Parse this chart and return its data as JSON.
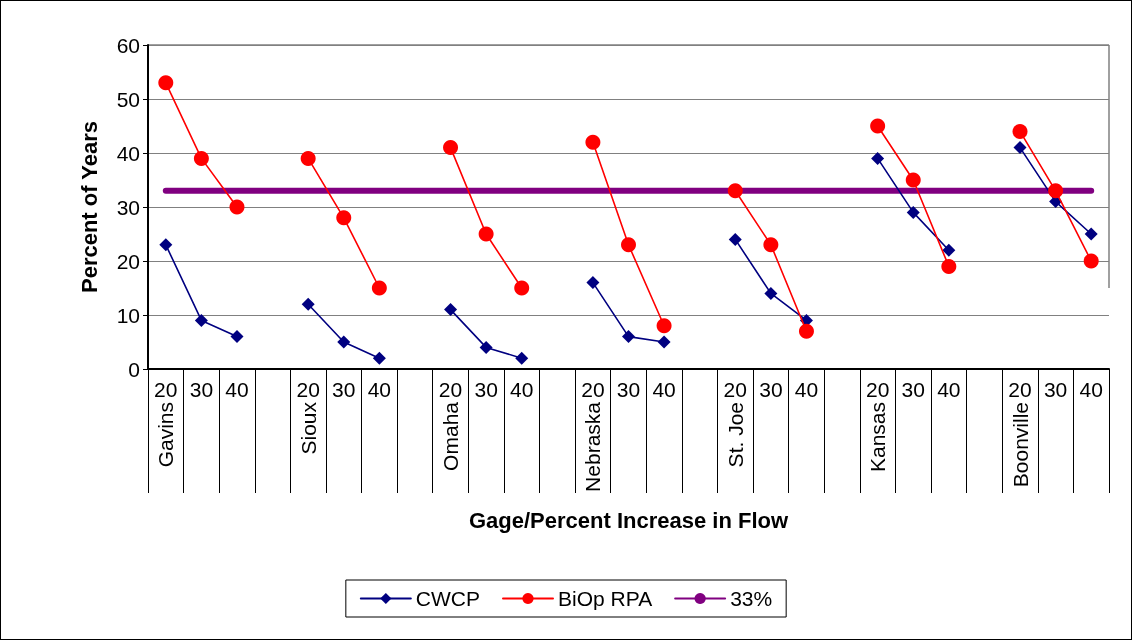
{
  "chart_data": {
    "type": "line",
    "xlabel": "Gage/Percent Increase in Flow",
    "ylabel": "Percent of Years",
    "categories": [
      "20",
      "30",
      "40",
      null,
      "20",
      "30",
      "40",
      null,
      "20",
      "30",
      "40",
      null,
      "20",
      "30",
      "40",
      null,
      "20",
      "30",
      "40",
      null,
      "20",
      "30",
      "40",
      null,
      "20",
      "30",
      "40"
    ],
    "annotations": [
      "Gavins",
      "Sioux",
      "Omaha",
      "Nebraska",
      "St. Joe",
      "Kansas",
      "Boonville"
    ],
    "series": [
      {
        "name": "CWCP",
        "color": "#000080",
        "marker": "diamond",
        "values": [
          23,
          9,
          6,
          null,
          12,
          5,
          2,
          null,
          11,
          4,
          2,
          null,
          16,
          6,
          5,
          null,
          24,
          14,
          9,
          null,
          39,
          29,
          22,
          null,
          41,
          31,
          25
        ]
      },
      {
        "name": "BiOp RPA",
        "color": "#ff0000",
        "marker": "circle",
        "values": [
          53,
          39,
          30,
          null,
          39,
          28,
          15,
          null,
          41,
          25,
          15,
          null,
          42,
          23,
          8,
          null,
          33,
          23,
          7,
          null,
          45,
          35,
          19,
          null,
          44,
          33,
          20
        ]
      },
      {
        "name": "33%",
        "color": "#800080",
        "marker": "none",
        "values": [
          33,
          33,
          33,
          33,
          33,
          33,
          33,
          33,
          33,
          33,
          33,
          33,
          33,
          33,
          33,
          33,
          33,
          33,
          33,
          33,
          33,
          33,
          33,
          33,
          33,
          33,
          33
        ]
      }
    ],
    "ylim": [
      0,
      60
    ],
    "yticks": [
      0,
      10,
      20,
      30,
      40,
      50,
      60
    ],
    "grid": "y",
    "legend": "bottom"
  }
}
